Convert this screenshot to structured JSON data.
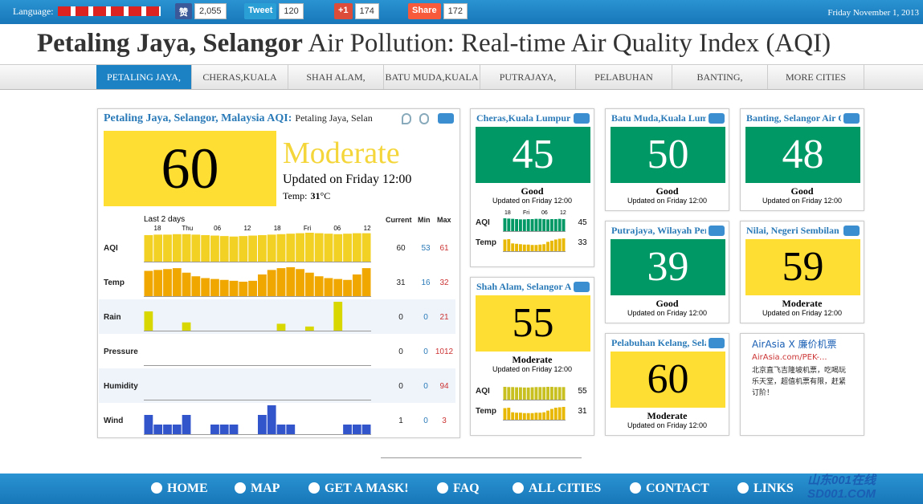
{
  "top_bar": {
    "language_label": "Language:",
    "social": [
      {
        "button": "赞",
        "count": "2,055",
        "color": "#3b5998"
      },
      {
        "button": "Tweet",
        "count": "120",
        "color": "#2a9fd6"
      },
      {
        "button": "+1",
        "count": "174",
        "color": "#dd4b39"
      },
      {
        "button": "Share",
        "count": "172",
        "color": "#f65a3b"
      }
    ],
    "date": "Friday November 1, 2013"
  },
  "header": {
    "city": "Petaling Jaya, Selangor",
    "rest": "Air Pollution: Real-time Air Quality Index (AQI)"
  },
  "nav": [
    "PETALING JAYA,",
    "CHERAS,KUALA",
    "SHAH ALAM,",
    "BATU MUDA,KUALA",
    "PUTRAJAYA,",
    "PELABUHAN",
    "BANTING,",
    "MORE CITIES"
  ],
  "level_colors": {
    "Good": {
      "bg": "#009966",
      "fg": "#ffffff"
    },
    "Moderate": {
      "bg": "#ffde33",
      "fg": "#000000"
    }
  },
  "main": {
    "title": "Petaling Jaya, Selangor, Malaysia AQI:",
    "subtitle": "Petaling Jaya, Selan",
    "aqi": "60",
    "level": "Moderate",
    "updated": "Updated on Friday 12:00",
    "temp_label": "Temp:",
    "temp": "31",
    "temp_unit": "°C",
    "history": {
      "label": "Last 2 days",
      "ticks": [
        "18",
        "Thu",
        "06",
        "12",
        "18",
        "Fri",
        "06",
        "12"
      ],
      "headers": [
        "Current",
        "Min",
        "Max"
      ],
      "rows": [
        {
          "name": "AQI",
          "current": "60",
          "min": "53",
          "max": "61",
          "color": "#f2d024",
          "values": [
            56,
            57,
            57,
            58,
            58,
            57,
            56,
            55,
            54,
            53,
            54,
            55,
            56,
            57,
            58,
            59,
            60,
            61,
            60,
            59,
            58,
            59,
            60,
            60
          ]
        },
        {
          "name": "Temp",
          "current": "31",
          "min": "16",
          "max": "32",
          "color": "#f0a800",
          "values": [
            28,
            29,
            30,
            31,
            26,
            22,
            20,
            19,
            18,
            17,
            16,
            17,
            24,
            29,
            31,
            32,
            30,
            26,
            22,
            20,
            19,
            18,
            24,
            31
          ]
        },
        {
          "name": "Rain",
          "current": "0",
          "min": "0",
          "max": "21",
          "color": "#d8d800",
          "values": [
            14,
            0,
            0,
            0,
            6,
            0,
            0,
            0,
            0,
            0,
            0,
            0,
            0,
            0,
            5,
            0,
            0,
            3,
            0,
            0,
            21,
            0,
            0,
            0
          ]
        },
        {
          "name": "Pressure",
          "current": "0",
          "min": "0",
          "max": "1012"
        },
        {
          "name": "Humidity",
          "current": "0",
          "min": "0",
          "max": "94"
        },
        {
          "name": "Wind",
          "current": "1",
          "min": "0",
          "max": "3",
          "color": "#3355cc",
          "values": [
            2,
            1,
            1,
            1,
            2,
            0,
            0,
            1,
            1,
            1,
            0,
            0,
            2,
            3,
            1,
            1,
            0,
            0,
            0,
            0,
            0,
            1,
            1,
            1
          ]
        }
      ]
    }
  },
  "cities": [
    {
      "name": "Cheras,Kuala Lumpur",
      "aqi": "45",
      "level": "Good",
      "updated": "Updated on Friday 12:00",
      "mini": {
        "ticks": [
          "18",
          "Fri",
          "06",
          "12"
        ],
        "rows": [
          {
            "name": "AQI",
            "current": "45",
            "color": "#009966",
            "values": [
              48,
              47,
              46,
              45,
              44,
              44,
              45,
              45,
              46,
              46,
              45,
              44,
              45,
              45,
              46,
              45
            ]
          },
          {
            "name": "Temp",
            "current": "33",
            "color": "#e8b800",
            "values": [
              30,
              31,
              20,
              19,
              18,
              17,
              17,
              16,
              16,
              17,
              18,
              24,
              27,
              30,
              32,
              33
            ]
          }
        ]
      }
    },
    {
      "name": "Shah Alam, Selangor Air",
      "aqi": "55",
      "level": "Moderate",
      "updated": "Updated on Friday 12:00",
      "mini": {
        "rows": [
          {
            "name": "AQI",
            "current": "55",
            "color": "#c8c020",
            "values": [
              56,
              55,
              55,
              54,
              54,
              53,
              53,
              54,
              55,
              55,
              55,
              56,
              56,
              55,
              55,
              55
            ]
          },
          {
            "name": "Temp",
            "current": "31",
            "color": "#e8b800",
            "values": [
              28,
              29,
              18,
              17,
              17,
              16,
              16,
              16,
              17,
              17,
              18,
              22,
              26,
              29,
              30,
              31
            ]
          }
        ]
      }
    },
    {
      "name": "Batu Muda,Kuala Lumpur",
      "aqi": "50",
      "level": "Good",
      "updated": "Updated on Friday 12:00"
    },
    {
      "name": "Putrajaya, Wilayah Persekutuan",
      "aqi": "39",
      "level": "Good",
      "updated": "Updated on Friday 12:00"
    },
    {
      "name": "Pelabuhan Kelang, Selangor",
      "aqi": "60",
      "level": "Moderate",
      "updated": "Updated on Friday 12:00"
    },
    {
      "name": "Banting, Selangor Air Quality",
      "aqi": "48",
      "level": "Good",
      "updated": "Updated on Friday 12:00"
    },
    {
      "name": "Nilai, Negeri Sembilan",
      "aqi": "59",
      "level": "Moderate",
      "updated": "Updated on Friday 12:00"
    }
  ],
  "ad": {
    "title": "AirAsia X 廉价机票",
    "url": "AirAsia.com/PEK-...",
    "text": "北京直飞吉隆坡机票，吃喝玩乐天堂，超值机票有限，赶紧订阶！"
  },
  "footer": [
    "HOME",
    "MAP",
    "GET A MASK!",
    "FAQ",
    "ALL CITIES",
    "CONTACT",
    "LINKS"
  ],
  "watermark": {
    "line1": "山东001在线",
    "line2": "SD001.COM"
  }
}
